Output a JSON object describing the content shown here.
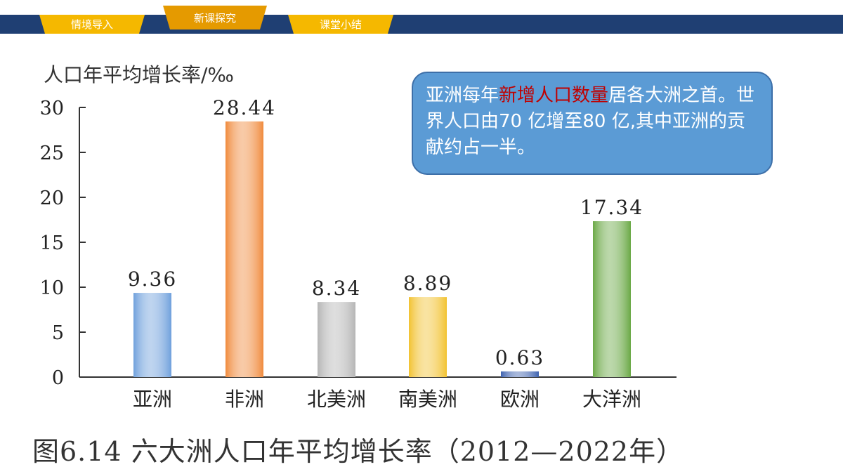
{
  "nav": {
    "tabs": [
      {
        "label": "情境导入"
      },
      {
        "label": "新课探究"
      },
      {
        "label": "课堂小结"
      }
    ],
    "colors": {
      "bar": "#1f3f73",
      "tab": "#f5b800",
      "tab_active": "#e59a00"
    }
  },
  "callout": {
    "part1": "亚洲每年",
    "highlight": "新增人口数量",
    "part2": "居各大洲之首。世界人口由70 亿增至80 亿,其中亚洲的贡献约占一半。"
  },
  "caption": "图6.14  六大洲人口年平均增长率（2012—2022年）",
  "chart_data": {
    "type": "bar",
    "ylabel": "人口年平均增长率/‰",
    "categories": [
      "亚洲",
      "非洲",
      "北美洲",
      "南美洲",
      "欧洲",
      "大洋洲"
    ],
    "values": [
      9.36,
      28.44,
      8.34,
      8.89,
      0.63,
      17.34
    ],
    "value_labels": [
      "9.36",
      "28.44",
      "8.34",
      "8.89",
      "0.63",
      "17.34"
    ],
    "ylim": [
      0,
      30
    ],
    "yticks": [
      0,
      5,
      10,
      15,
      20,
      25,
      30
    ],
    "colors": [
      "#6fa0dc",
      "#f08a3c",
      "#b5b5b5",
      "#f2c230",
      "#3f63b0",
      "#6aa845"
    ],
    "grid": false,
    "legend": "none"
  }
}
